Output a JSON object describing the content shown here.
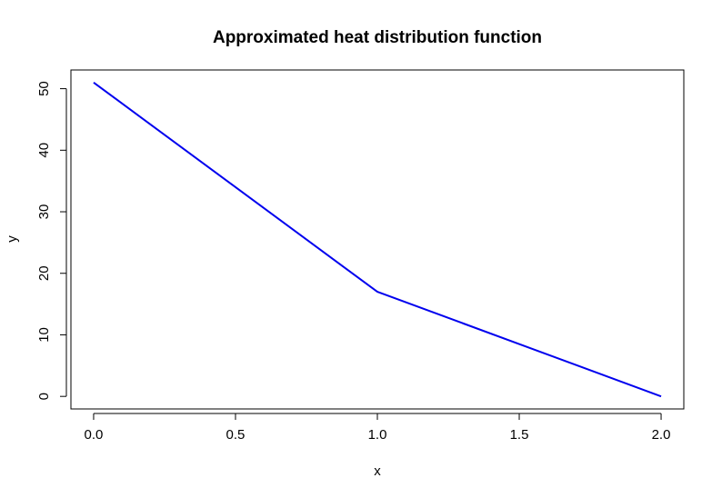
{
  "chart_data": {
    "type": "line",
    "title": "Approximated heat distribution function",
    "xlabel": "x",
    "ylabel": "y",
    "x": [
      0.0,
      1.0,
      2.0
    ],
    "series": [
      {
        "values": [
          51,
          17,
          0
        ],
        "color": "#0000ee"
      }
    ],
    "xlim": [
      -0.08,
      2.08
    ],
    "ylim": [
      -2.04,
      53.04
    ],
    "xticks": [
      0.0,
      0.5,
      1.0,
      1.5,
      2.0
    ],
    "xtick_labels": [
      "0.0",
      "0.5",
      "1.0",
      "1.5",
      "2.0"
    ],
    "yticks": [
      0,
      10,
      20,
      30,
      40,
      50
    ],
    "ytick_labels": [
      "0",
      "10",
      "20",
      "30",
      "40",
      "50"
    ],
    "grid": false,
    "legend": "none"
  }
}
